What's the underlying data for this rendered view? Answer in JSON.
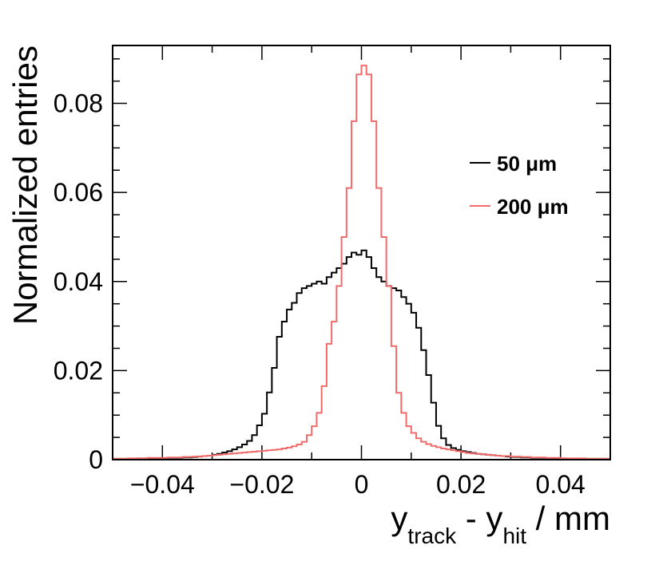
{
  "chart_data": {
    "type": "line",
    "subtype": "step-histogram",
    "title": "",
    "xlabel": {
      "main": "y",
      "sub1": "track",
      "mid": " - y",
      "sub2": "hit",
      "tail": " / mm"
    },
    "ylabel": "Normalized entries",
    "xlim": [
      -0.05,
      0.05
    ],
    "ylim": [
      0,
      0.093
    ],
    "x_ticks": [
      -0.04,
      -0.02,
      0,
      0.02,
      0.04
    ],
    "x_tick_labels": [
      "−0.04",
      "−0.02",
      "0",
      "0.02",
      "0.04"
    ],
    "y_ticks": [
      0,
      0.02,
      0.04,
      0.06,
      0.08
    ],
    "y_tick_labels": [
      "0",
      "0.02",
      "0.04",
      "0.06",
      "0.08"
    ],
    "bin_width": 0.001,
    "x_bin_start": -0.05,
    "legend_position": "top-right",
    "series": [
      {
        "name": "50 μm",
        "color": "#000000",
        "values": [
          0.0002,
          0.0002,
          0.0002,
          0.0002,
          0.0002,
          0.0003,
          0.0003,
          0.0003,
          0.0003,
          0.0003,
          0.0003,
          0.0004,
          0.0004,
          0.0004,
          0.0005,
          0.0005,
          0.0006,
          0.0007,
          0.0008,
          0.0009,
          0.0011,
          0.0013,
          0.0016,
          0.0019,
          0.0023,
          0.0028,
          0.0034,
          0.0042,
          0.0055,
          0.0077,
          0.0103,
          0.0151,
          0.0206,
          0.0276,
          0.031,
          0.0337,
          0.0352,
          0.0374,
          0.0385,
          0.039,
          0.0395,
          0.04,
          0.0395,
          0.041,
          0.042,
          0.043,
          0.044,
          0.0455,
          0.0465,
          0.046,
          0.047,
          0.0455,
          0.043,
          0.041,
          0.04,
          0.039,
          0.0385,
          0.038,
          0.0365,
          0.035,
          0.033,
          0.0296,
          0.0246,
          0.019,
          0.0128,
          0.0076,
          0.0048,
          0.0033,
          0.0026,
          0.0022,
          0.0019,
          0.0017,
          0.0015,
          0.0013,
          0.0012,
          0.0011,
          0.001,
          0.0009,
          0.0008,
          0.0007,
          0.0006,
          0.0006,
          0.0005,
          0.0005,
          0.0004,
          0.0004,
          0.0004,
          0.0003,
          0.0003,
          0.0003,
          0.0003,
          0.0002,
          0.0002,
          0.0002,
          0.0002,
          0.0002,
          0.0002,
          0.0002,
          0.0002,
          0.0002
        ]
      },
      {
        "name": "200 μm",
        "color": "#f26b6b",
        "values": [
          0.0002,
          0.0002,
          0.0002,
          0.0003,
          0.0003,
          0.0003,
          0.0003,
          0.0004,
          0.0004,
          0.0004,
          0.0004,
          0.0005,
          0.0005,
          0.0005,
          0.0006,
          0.0006,
          0.0007,
          0.0007,
          0.0008,
          0.0009,
          0.001,
          0.0011,
          0.0012,
          0.0013,
          0.0014,
          0.0015,
          0.0016,
          0.0017,
          0.0018,
          0.0019,
          0.002,
          0.0021,
          0.0022,
          0.0023,
          0.0025,
          0.0027,
          0.003,
          0.0034,
          0.004,
          0.0055,
          0.0075,
          0.0105,
          0.0165,
          0.026,
          0.031,
          0.039,
          0.05,
          0.061,
          0.076,
          0.0865,
          0.0885,
          0.0865,
          0.076,
          0.061,
          0.05,
          0.039,
          0.0255,
          0.015,
          0.0105,
          0.0075,
          0.006,
          0.0048,
          0.004,
          0.0035,
          0.0031,
          0.0028,
          0.0025,
          0.0023,
          0.0021,
          0.0019,
          0.0017,
          0.0015,
          0.0014,
          0.0013,
          0.0012,
          0.0011,
          0.001,
          0.0009,
          0.0008,
          0.0008,
          0.0007,
          0.0007,
          0.0006,
          0.0006,
          0.0005,
          0.0005,
          0.0005,
          0.0004,
          0.0004,
          0.0004,
          0.0003,
          0.0003,
          0.0003,
          0.0003,
          0.0003,
          0.0002,
          0.0002,
          0.0002,
          0.0002,
          0.0002
        ]
      }
    ]
  }
}
